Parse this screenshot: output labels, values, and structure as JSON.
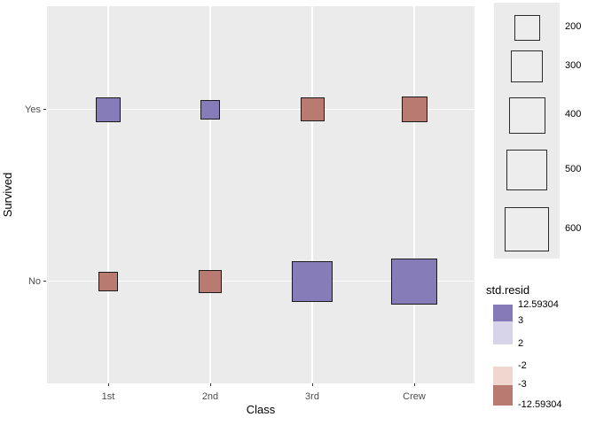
{
  "chart_data": {
    "type": "scatter",
    "subtype": "count-squares",
    "title": "",
    "xlabel": "Class",
    "ylabel": "Survived",
    "x_categories": [
      "1st",
      "2nd",
      "3rd",
      "Crew"
    ],
    "y_categories": [
      "Yes",
      "No"
    ],
    "grid": "major-white-on-grey-panel",
    "legend_position": "right",
    "cells": [
      {
        "class": "1st",
        "survived": "Yes",
        "count": 203,
        "residual": "positive"
      },
      {
        "class": "2nd",
        "survived": "Yes",
        "count": 118,
        "residual": "positive"
      },
      {
        "class": "3rd",
        "survived": "Yes",
        "count": 178,
        "residual": "negative"
      },
      {
        "class": "Crew",
        "survived": "Yes",
        "count": 212,
        "residual": "negative"
      },
      {
        "class": "1st",
        "survived": "No",
        "count": 122,
        "residual": "negative"
      },
      {
        "class": "2nd",
        "survived": "No",
        "count": 167,
        "residual": "negative"
      },
      {
        "class": "3rd",
        "survived": "No",
        "count": 528,
        "residual": "positive"
      },
      {
        "class": "Crew",
        "survived": "No",
        "count": 673,
        "residual": "positive"
      }
    ],
    "size_legend": {
      "values": [
        "200",
        "300",
        "400",
        "500",
        "600"
      ]
    },
    "color_legend": {
      "title": "std.resid",
      "tick_labels": [
        "12.59304",
        "3",
        "2",
        "-2",
        "-3",
        "-12.59304"
      ],
      "segment_colors": [
        "#8579B7",
        "#D7D3E8",
        "#FFFFFF",
        "#EFD6CE",
        "#B97A72"
      ]
    }
  },
  "palette": {
    "positive": "#867CB8",
    "negative": "#B97A72",
    "panel_bg": "#EBEBEB",
    "gridline": "#FFFFFF",
    "square_border": "#1A1A1A",
    "tick_text": "#4D4D4D"
  }
}
